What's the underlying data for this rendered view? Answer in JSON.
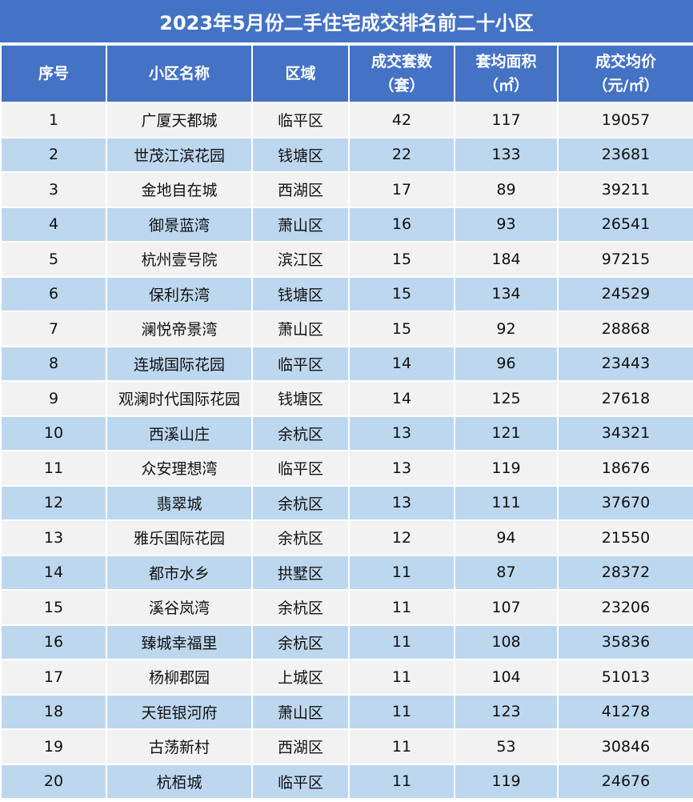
{
  "title": "2023年5月份二手住宅成交排名前二十小区",
  "headers": {
    "rank": "序号",
    "name": "小区名称",
    "district": "区域",
    "deals_line1": "成交套数",
    "deals_line2": "（套）",
    "area_line1": "套均面积",
    "area_line2": "（㎡）",
    "price_line1": "成交均价",
    "price_line2": "（元/㎡）"
  },
  "rows": [
    {
      "rank": "1",
      "name": "广厦天都城",
      "district": "临平区",
      "deals": "42",
      "area": "117",
      "price": "19057"
    },
    {
      "rank": "2",
      "name": "世茂江滨花园",
      "district": "钱塘区",
      "deals": "22",
      "area": "133",
      "price": "23681"
    },
    {
      "rank": "3",
      "name": "金地自在城",
      "district": "西湖区",
      "deals": "17",
      "area": "89",
      "price": "39211"
    },
    {
      "rank": "4",
      "name": "御景蓝湾",
      "district": "萧山区",
      "deals": "16",
      "area": "93",
      "price": "26541"
    },
    {
      "rank": "5",
      "name": "杭州壹号院",
      "district": "滨江区",
      "deals": "15",
      "area": "184",
      "price": "97215"
    },
    {
      "rank": "6",
      "name": "保利东湾",
      "district": "钱塘区",
      "deals": "15",
      "area": "134",
      "price": "24529"
    },
    {
      "rank": "7",
      "name": "澜悦帝景湾",
      "district": "萧山区",
      "deals": "15",
      "area": "92",
      "price": "28868"
    },
    {
      "rank": "8",
      "name": "连城国际花园",
      "district": "临平区",
      "deals": "14",
      "area": "96",
      "price": "23443"
    },
    {
      "rank": "9",
      "name": "观澜时代国际花园",
      "district": "钱塘区",
      "deals": "14",
      "area": "125",
      "price": "27618"
    },
    {
      "rank": "10",
      "name": "西溪山庄",
      "district": "余杭区",
      "deals": "13",
      "area": "121",
      "price": "34321"
    },
    {
      "rank": "11",
      "name": "众安理想湾",
      "district": "临平区",
      "deals": "13",
      "area": "119",
      "price": "18676"
    },
    {
      "rank": "12",
      "name": "翡翠城",
      "district": "余杭区",
      "deals": "13",
      "area": "111",
      "price": "37670"
    },
    {
      "rank": "13",
      "name": "雅乐国际花园",
      "district": "余杭区",
      "deals": "12",
      "area": "94",
      "price": "21550"
    },
    {
      "rank": "14",
      "name": "都市水乡",
      "district": "拱墅区",
      "deals": "11",
      "area": "87",
      "price": "28372"
    },
    {
      "rank": "15",
      "name": "溪谷岚湾",
      "district": "余杭区",
      "deals": "11",
      "area": "107",
      "price": "23206"
    },
    {
      "rank": "16",
      "name": "臻城幸福里",
      "district": "余杭区",
      "deals": "11",
      "area": "108",
      "price": "35836"
    },
    {
      "rank": "17",
      "name": "杨柳郡园",
      "district": "上城区",
      "deals": "11",
      "area": "104",
      "price": "51013"
    },
    {
      "rank": "18",
      "name": "天钜银河府",
      "district": "萧山区",
      "deals": "11",
      "area": "123",
      "price": "41278"
    },
    {
      "rank": "19",
      "name": "古荡新村",
      "district": "西湖区",
      "deals": "11",
      "area": "53",
      "price": "30846"
    },
    {
      "rank": "20",
      "name": "杭栢城",
      "district": "临平区",
      "deals": "11",
      "area": "119",
      "price": "24676"
    }
  ],
  "colors": {
    "header_bg": "#4472c4",
    "row_light": "#f2f2f2",
    "row_blue": "#bdd7ee"
  }
}
